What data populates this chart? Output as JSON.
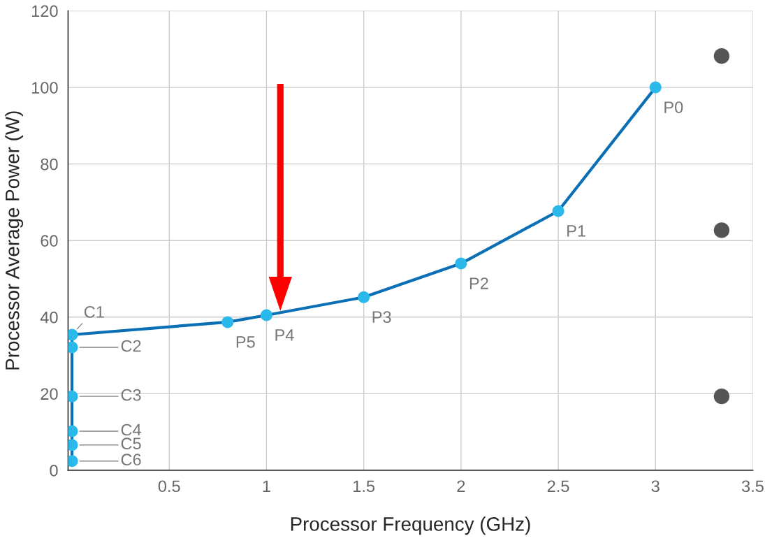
{
  "chart_data": {
    "type": "line",
    "xlabel": "Processor Frequency (GHz)",
    "ylabel": "Processor Average Power (W)",
    "series": [
      {
        "color": "#0a6fb5",
        "marker": "circle",
        "x": [
          0,
          0,
          0,
          0,
          0,
          0,
          0.8,
          1.0,
          1.5,
          2.0,
          2.5,
          3.0
        ],
        "values": [
          2.4,
          6.6,
          10.2,
          19.3,
          32.1,
          35.4,
          38.7,
          40.5,
          45.2,
          54.0,
          67.7,
          100
        ]
      },
      {
        "type": "scatter",
        "color": "#555555",
        "marker": "circle",
        "x": [
          3.34,
          3.34,
          3.34
        ],
        "values": [
          108.2,
          62.7,
          19.3
        ]
      }
    ],
    "annotations": [
      {
        "text": "C1",
        "x": 0,
        "y": 35.4
      },
      {
        "text": "C2",
        "x": 0,
        "y": 32.1
      },
      {
        "text": "C3",
        "x": 0,
        "y": 19.3
      },
      {
        "text": "C4",
        "x": 0,
        "y": 10.2
      },
      {
        "text": "C5",
        "x": 0,
        "y": 6.6
      },
      {
        "text": "C6",
        "x": 0,
        "y": 2.4
      },
      {
        "text": "P5",
        "x": 0.8,
        "y": 38.7
      },
      {
        "text": "P4",
        "x": 1.0,
        "y": 40.5
      },
      {
        "text": "P3",
        "x": 1.5,
        "y": 45.2
      },
      {
        "text": "P2",
        "x": 2.0,
        "y": 54.0
      },
      {
        "text": "P1",
        "x": 2.5,
        "y": 67.7
      },
      {
        "text": "P0",
        "x": 3.0,
        "y": 100
      }
    ],
    "xlim": [
      -0.02,
      3.5
    ],
    "xticks": [
      0.5,
      1,
      1.5,
      2,
      2.5,
      3,
      3.5
    ],
    "ylim": [
      0,
      120
    ],
    "yticks": [
      0,
      20,
      40,
      60,
      80,
      100,
      120
    ],
    "grid": true,
    "legend": false
  }
}
